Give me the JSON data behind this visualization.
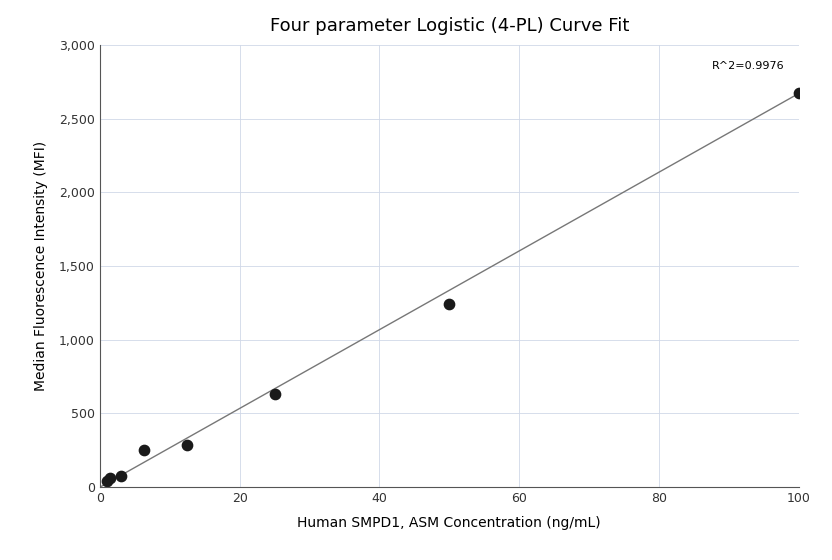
{
  "title": "Four parameter Logistic (4-PL) Curve Fit",
  "xlabel": "Human SMPD1, ASM Concentration (ng/mL)",
  "ylabel": "Median Fluorescence Intensity (MFI)",
  "scatter_x": [
    1.0,
    1.5,
    3.0,
    6.25,
    12.5,
    25.0,
    50.0,
    100.0
  ],
  "scatter_y": [
    40,
    65,
    75,
    255,
    285,
    635,
    1240,
    2670
  ],
  "line_x": [
    0,
    100
  ],
  "line_y": [
    0,
    2670
  ],
  "xlim": [
    0,
    100
  ],
  "ylim": [
    0,
    3000
  ],
  "xticks": [
    0,
    20,
    40,
    60,
    80,
    100
  ],
  "yticks": [
    0,
    500,
    1000,
    1500,
    2000,
    2500,
    3000
  ],
  "ytick_labels": [
    "0",
    "500",
    "1,000",
    "1,500",
    "2,000",
    "2,500",
    "3,000"
  ],
  "r2_text": "R^2=0.9976",
  "r2_x": 98,
  "r2_y": 2820,
  "dot_color": "#1a1a1a",
  "line_color": "#777777",
  "background_color": "#ffffff",
  "grid_color": "#d0d8e8",
  "title_fontsize": 13,
  "label_fontsize": 10,
  "tick_fontsize": 9,
  "dot_size": 55
}
